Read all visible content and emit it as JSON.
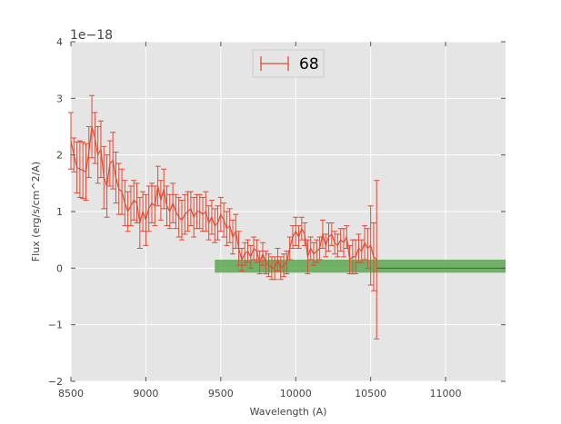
{
  "chart_data": {
    "type": "line",
    "title": "",
    "xlabel": "Wavelength (A)",
    "ylabel": "Flux (erg/s/cm^2/A)",
    "offset_text": "1e−18",
    "xlim": [
      8500,
      11400
    ],
    "ylim": [
      -2,
      4
    ],
    "x_ticks": [
      8500,
      9000,
      9500,
      10000,
      10500,
      11000
    ],
    "x_tick_labels": [
      "8500",
      "9000",
      "9500",
      "10000",
      "10500",
      "11000"
    ],
    "y_ticks": [
      -2,
      -1,
      0,
      1,
      2,
      3,
      4
    ],
    "y_tick_labels": [
      "−2",
      "−1",
      "0",
      "1",
      "2",
      "3",
      "4"
    ],
    "grid": true,
    "legend_position": "top-center",
    "colors": {
      "background": "#e5e5e5",
      "grid": "#ffffff",
      "series": "#e24a33",
      "band": "#4a9e3c"
    },
    "series": [
      {
        "name": "68",
        "x": [
          8500,
          8520,
          8540,
          8560,
          8580,
          8600,
          8620,
          8640,
          8660,
          8680,
          8700,
          8720,
          8740,
          8760,
          8780,
          8800,
          8820,
          8840,
          8860,
          8880,
          8900,
          8920,
          8940,
          8960,
          8980,
          9000,
          9020,
          9040,
          9060,
          9080,
          9100,
          9120,
          9140,
          9160,
          9180,
          9200,
          9220,
          9240,
          9260,
          9280,
          9300,
          9320,
          9340,
          9360,
          9380,
          9400,
          9420,
          9440,
          9460,
          9480,
          9500,
          9520,
          9540,
          9560,
          9580,
          9600,
          9620,
          9640,
          9660,
          9680,
          9700,
          9720,
          9740,
          9760,
          9780,
          9800,
          9820,
          9840,
          9860,
          9880,
          9900,
          9920,
          9940,
          9960,
          9980,
          10000,
          10020,
          10040,
          10060,
          10080,
          10100,
          10120,
          10140,
          10160,
          10180,
          10200,
          10220,
          10240,
          10260,
          10280,
          10300,
          10320,
          10340,
          10360,
          10380,
          10400,
          10420,
          10440,
          10460,
          10480,
          10500,
          10520,
          10540
        ],
        "y": [
          2.25,
          2.0,
          1.78,
          1.75,
          1.73,
          1.7,
          2.05,
          2.5,
          2.3,
          2.0,
          2.1,
          1.6,
          1.45,
          1.85,
          1.9,
          1.6,
          1.4,
          1.35,
          1.15,
          1.0,
          1.1,
          1.2,
          1.15,
          0.8,
          1.0,
          0.85,
          1.05,
          1.15,
          1.1,
          1.45,
          1.2,
          1.4,
          1.1,
          1.0,
          1.15,
          1.0,
          0.9,
          0.85,
          0.95,
          1.0,
          1.05,
          0.9,
          1.0,
          1.0,
          0.95,
          1.0,
          0.8,
          0.9,
          0.75,
          0.8,
          0.95,
          0.85,
          0.7,
          0.75,
          0.55,
          0.65,
          0.35,
          0.15,
          0.25,
          0.3,
          0.2,
          0.35,
          0.3,
          0.1,
          0.25,
          0.1,
          0.05,
          0.0,
          0.0,
          0.15,
          0.0,
          0.05,
          0.1,
          0.35,
          0.55,
          0.65,
          0.55,
          0.7,
          0.6,
          0.2,
          0.35,
          0.25,
          0.3,
          0.35,
          0.6,
          0.4,
          0.55,
          0.6,
          0.45,
          0.4,
          0.5,
          0.45,
          0.55,
          0.15,
          0.2,
          0.2,
          0.35,
          0.3,
          0.45,
          0.35,
          0.4,
          0.2,
          0.15
        ],
        "err": [
          0.5,
          0.3,
          0.45,
          0.5,
          0.5,
          0.5,
          0.45,
          0.55,
          0.45,
          0.5,
          0.5,
          0.55,
          0.55,
          0.4,
          0.5,
          0.45,
          0.45,
          0.4,
          0.4,
          0.35,
          0.35,
          0.35,
          0.35,
          0.45,
          0.35,
          0.45,
          0.4,
          0.35,
          0.35,
          0.35,
          0.35,
          0.35,
          0.35,
          0.3,
          0.35,
          0.3,
          0.35,
          0.35,
          0.35,
          0.35,
          0.3,
          0.35,
          0.3,
          0.3,
          0.3,
          0.35,
          0.3,
          0.3,
          0.3,
          0.3,
          0.3,
          0.3,
          0.3,
          0.3,
          0.3,
          0.3,
          0.3,
          0.2,
          0.2,
          0.2,
          0.2,
          0.2,
          0.2,
          0.2,
          0.2,
          0.2,
          0.2,
          0.2,
          0.2,
          0.2,
          0.2,
          0.2,
          0.2,
          0.2,
          0.2,
          0.25,
          0.2,
          0.2,
          0.2,
          0.3,
          0.2,
          0.2,
          0.2,
          0.2,
          0.25,
          0.2,
          0.25,
          0.2,
          0.2,
          0.2,
          0.2,
          0.25,
          0.2,
          0.25,
          0.3,
          0.3,
          0.25,
          0.2,
          0.3,
          0.35,
          0.7,
          0.6,
          1.4
        ]
      }
    ],
    "band": {
      "x_start": 9460,
      "x_end": 11400,
      "y_low": -0.08,
      "y_high": 0.15
    },
    "tail_line": {
      "x_start": 10540,
      "x_end": 11400,
      "y": 0.0
    }
  }
}
